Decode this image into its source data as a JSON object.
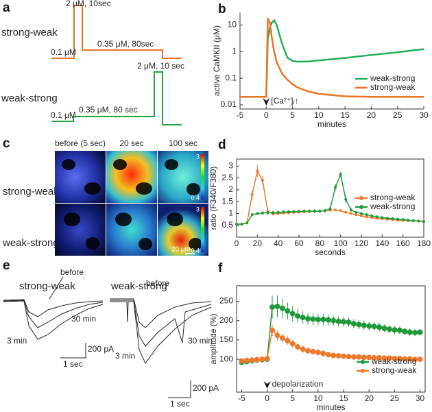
{
  "panel_labels": [
    "a",
    "b",
    "c",
    "d",
    "e",
    "f"
  ],
  "protocol": {
    "rows": [
      {
        "name": "strong-weak",
        "labels": [
          "0.1 μM",
          "2 μM, 10sec",
          "0.35 μM, 80sec"
        ]
      },
      {
        "name": "weak-strong",
        "labels": [
          "0.1 μM",
          "0.35 μM, 80 sec",
          "2 μM, 10 sec"
        ]
      }
    ]
  },
  "imaging": {
    "columns": [
      "before (5 sec)",
      "20 sec",
      "100 sec"
    ],
    "rows": [
      "strong-weak",
      "weak-strong"
    ],
    "colorbar": [
      3,
      0.4
    ],
    "scale_bar": "20 μm"
  },
  "traces": {
    "panels": [
      {
        "title": "strong-weak",
        "labels": [
          "before",
          "30 min",
          "3 min"
        ],
        "scale": [
          "200 pA",
          "1 sec"
        ]
      },
      {
        "title": "weak-strong",
        "labels": [
          "before",
          "30 min",
          "3 min"
        ],
        "scale": [
          "200 pA",
          "1 sec"
        ]
      }
    ]
  },
  "chart_data": [
    {
      "type": "line",
      "ylabel": "active CaMKII (μM)",
      "xlabel": "minutes",
      "log": true,
      "xlim": [
        -5,
        30
      ],
      "xticks": [
        -5,
        0,
        5,
        10,
        15,
        20,
        25,
        30
      ],
      "ylim": [
        0.007,
        30
      ],
      "yticks": [
        0.01,
        0.1,
        1,
        10
      ],
      "legend": "lower right",
      "markers": false,
      "annotation": {
        "text": "[Ca²⁺]ᵢ↑",
        "x": 0
      },
      "x": [
        -5,
        0,
        0.3,
        0.7,
        1,
        1.5,
        2,
        3,
        4,
        5,
        6,
        8,
        10,
        15,
        20,
        25,
        30
      ],
      "series": [
        {
          "name": "weak-strong",
          "color": "#22ad5c",
          "values": [
            0.02,
            0.02,
            3,
            8,
            12,
            15,
            10,
            2,
            0.6,
            0.45,
            0.42,
            0.43,
            0.47,
            0.58,
            0.75,
            0.95,
            1.25
          ]
        },
        {
          "name": "strong-weak",
          "color": "#ec7322",
          "values": [
            0.02,
            0.02,
            18,
            12,
            4,
            1,
            0.4,
            0.15,
            0.09,
            0.06,
            0.045,
            0.032,
            0.026,
            0.021,
            0.02,
            0.02,
            0.02
          ]
        }
      ]
    },
    {
      "type": "line",
      "ylabel": "ratio (F340/F380)",
      "xlabel": "seconds",
      "log": false,
      "xlim": [
        0,
        180
      ],
      "xticks": [
        0,
        20,
        40,
        60,
        80,
        100,
        120,
        140,
        160,
        180
      ],
      "ylim": [
        0,
        3.3
      ],
      "yticks": [
        0.5,
        1,
        1.5,
        2,
        2.5,
        3
      ],
      "legend": "center right",
      "markers": true,
      "x": [
        0,
        5,
        10,
        15,
        20,
        25,
        30,
        35,
        40,
        45,
        50,
        55,
        60,
        65,
        70,
        75,
        80,
        85,
        90,
        95,
        100,
        105,
        110,
        115,
        120,
        125,
        130,
        135,
        140,
        145,
        150,
        155,
        160,
        165,
        170,
        175,
        180
      ],
      "series": [
        {
          "name": "strong-weak",
          "color": "#ec7a2c",
          "values": [
            0.55,
            0.55,
            0.6,
            1.8,
            2.8,
            2.4,
            1.1,
            0.98,
            1.0,
            1.02,
            1.03,
            1.05,
            1.06,
            1.07,
            1.08,
            1.1,
            1.1,
            1.12,
            1.14,
            1.15,
            1.12,
            1.05,
            1.0,
            0.95,
            0.9,
            0.86,
            0.83,
            0.8,
            0.78,
            0.76,
            0.74,
            0.72,
            0.71,
            0.7,
            0.69,
            0.68,
            0.67
          ],
          "errors": [
            0.02,
            0.02,
            0.03,
            0.2,
            0.25,
            0.2,
            0.1,
            0.05,
            0.05,
            0.06,
            0.06,
            0.06,
            0.06,
            0.06,
            0.06,
            0.06,
            0.06,
            0.05,
            0.05,
            0.05,
            0.05,
            0.05,
            0.05,
            0.04,
            0.04,
            0.04,
            0.04,
            0.04,
            0.04,
            0.03,
            0.03,
            0.03,
            0.03,
            0.03,
            0.03,
            0.03,
            0.03
          ]
        },
        {
          "name": "weak-strong",
          "color": "#1f9a3a",
          "values": [
            0.55,
            0.55,
            0.6,
            0.95,
            1.0,
            1.02,
            1.03,
            1.04,
            1.05,
            1.06,
            1.07,
            1.08,
            1.09,
            1.1,
            1.1,
            1.1,
            1.1,
            1.12,
            1.2,
            2.1,
            2.65,
            1.6,
            1.15,
            1.05,
            1.0,
            0.95,
            0.9,
            0.86,
            0.83,
            0.8,
            0.78,
            0.76,
            0.74,
            0.72,
            0.7,
            0.68,
            0.66
          ],
          "errors": [
            0.02,
            0.02,
            0.03,
            0.06,
            0.06,
            0.08,
            0.08,
            0.08,
            0.08,
            0.08,
            0.08,
            0.08,
            0.08,
            0.08,
            0.08,
            0.08,
            0.08,
            0.08,
            0.1,
            0.15,
            0.12,
            0.15,
            0.08,
            0.05,
            0.05,
            0.05,
            0.05,
            0.05,
            0.05,
            0.03,
            0.03,
            0.03,
            0.03,
            0.03,
            0.03,
            0.03,
            0.03
          ]
        }
      ]
    },
    {
      "type": "line",
      "ylabel": "amplitude (%)",
      "xlabel": "minutes",
      "log": false,
      "xlim": [
        -6,
        31
      ],
      "xticks": [
        -5,
        0,
        5,
        10,
        15,
        20,
        25,
        30
      ],
      "ylim": [
        15,
        290
      ],
      "yticks": [
        100,
        150,
        200,
        250
      ],
      "legend": "lower right",
      "markers": true,
      "annotation": {
        "text": "depolarization",
        "x": 0
      },
      "x": [
        -5,
        -4,
        -3,
        -2,
        -1,
        0,
        1,
        2,
        3,
        4,
        5,
        6,
        7,
        8,
        9,
        10,
        11,
        12,
        13,
        14,
        15,
        16,
        17,
        18,
        19,
        20,
        21,
        22,
        23,
        24,
        25,
        26,
        27,
        28,
        29,
        30
      ],
      "series": [
        {
          "name": "weak-strong",
          "color": "#1f9a3a",
          "values": [
            92,
            94,
            96,
            98,
            99,
            100,
            235,
            237,
            232,
            225,
            218,
            212,
            208,
            205,
            204,
            203,
            203,
            202,
            200,
            198,
            197,
            196,
            192,
            190,
            188,
            186,
            185,
            183,
            180,
            178,
            176,
            175,
            172,
            170,
            169,
            170
          ],
          "errors": [
            5,
            5,
            4,
            4,
            4,
            4,
            30,
            28,
            26,
            22,
            20,
            18,
            16,
            15,
            15,
            14,
            14,
            14,
            13,
            13,
            13,
            12,
            12,
            12,
            12,
            11,
            11,
            11,
            10,
            10,
            10,
            10,
            9,
            9,
            9,
            8
          ]
        },
        {
          "name": "strong-weak",
          "color": "#ec7a2c",
          "values": [
            96,
            97,
            98,
            99,
            100,
            102,
            175,
            162,
            155,
            148,
            140,
            132,
            126,
            122,
            120,
            118,
            115,
            112,
            110,
            109,
            108,
            107,
            106,
            106,
            105,
            105,
            104,
            104,
            103,
            103,
            102,
            102,
            101,
            101,
            100,
            100
          ],
          "errors": [
            4,
            4,
            4,
            4,
            4,
            4,
            15,
            14,
            12,
            11,
            10,
            9,
            9,
            8,
            8,
            8,
            7,
            7,
            7,
            6,
            6,
            6,
            6,
            6,
            5,
            5,
            5,
            5,
            5,
            5,
            4,
            4,
            4,
            4,
            4,
            4
          ]
        }
      ]
    }
  ]
}
